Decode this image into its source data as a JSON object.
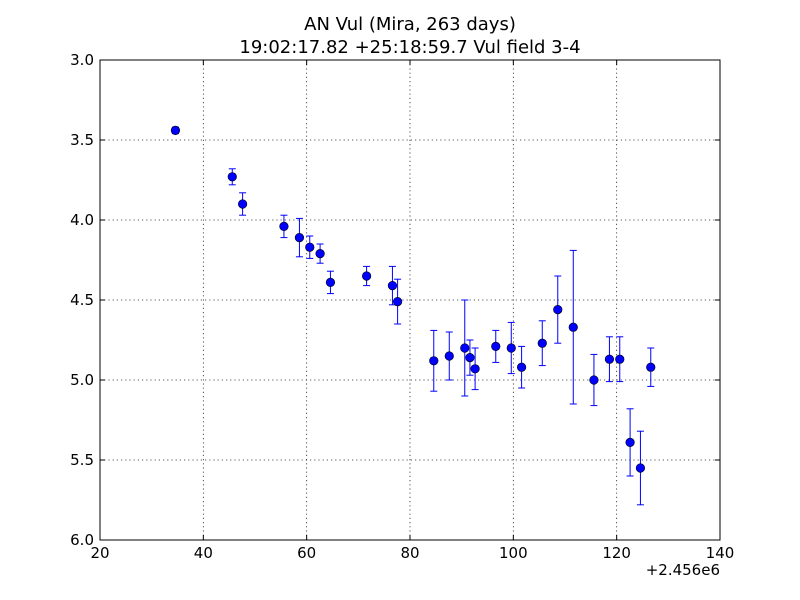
{
  "chart_data": {
    "type": "scatter",
    "title": "AN Vul (Mira, 263 days)",
    "subtitle": "19:02:17.82 +25:18:59.7 Vul field 3-4",
    "x_offset_label": "+2.456e6",
    "xlim": [
      20,
      140
    ],
    "ylim": [
      6.0,
      3.0
    ],
    "y_inverted": true,
    "x_ticks": [
      "20",
      "40",
      "60",
      "80",
      "100",
      "120",
      "140"
    ],
    "y_ticks": [
      "3.0",
      "3.5",
      "4.0",
      "4.5",
      "5.0",
      "5.5",
      "6.0"
    ],
    "grid": true,
    "marker_color": "#0000ff",
    "errorbar_color": "#0000ff",
    "points": [
      {
        "x": 34.6,
        "y": 3.44,
        "err": 0.02
      },
      {
        "x": 45.6,
        "y": 3.73,
        "err": 0.05
      },
      {
        "x": 47.6,
        "y": 3.9,
        "err": 0.07
      },
      {
        "x": 55.6,
        "y": 4.04,
        "err": 0.07
      },
      {
        "x": 58.6,
        "y": 4.11,
        "err": 0.12
      },
      {
        "x": 60.6,
        "y": 4.17,
        "err": 0.07
      },
      {
        "x": 62.6,
        "y": 4.21,
        "err": 0.06
      },
      {
        "x": 64.6,
        "y": 4.39,
        "err": 0.07
      },
      {
        "x": 71.6,
        "y": 4.35,
        "err": 0.06
      },
      {
        "x": 76.6,
        "y": 4.41,
        "err": 0.12
      },
      {
        "x": 77.6,
        "y": 4.51,
        "err": 0.14
      },
      {
        "x": 84.6,
        "y": 4.88,
        "err": 0.19
      },
      {
        "x": 87.6,
        "y": 4.85,
        "err": 0.15
      },
      {
        "x": 90.6,
        "y": 4.8,
        "err": 0.3
      },
      {
        "x": 91.6,
        "y": 4.86,
        "err": 0.11
      },
      {
        "x": 92.6,
        "y": 4.93,
        "err": 0.13
      },
      {
        "x": 96.6,
        "y": 4.79,
        "err": 0.1
      },
      {
        "x": 99.6,
        "y": 4.8,
        "err": 0.16
      },
      {
        "x": 101.6,
        "y": 4.92,
        "err": 0.13
      },
      {
        "x": 105.6,
        "y": 4.77,
        "err": 0.14
      },
      {
        "x": 108.6,
        "y": 4.56,
        "err": 0.21
      },
      {
        "x": 111.6,
        "y": 4.67,
        "err": 0.48
      },
      {
        "x": 115.6,
        "y": 5.0,
        "err": 0.16
      },
      {
        "x": 118.6,
        "y": 4.87,
        "err": 0.14
      },
      {
        "x": 120.6,
        "y": 4.87,
        "err": 0.14
      },
      {
        "x": 122.6,
        "y": 5.39,
        "err": 0.21
      },
      {
        "x": 124.6,
        "y": 5.55,
        "err": 0.23
      },
      {
        "x": 126.6,
        "y": 4.92,
        "err": 0.12
      }
    ]
  }
}
